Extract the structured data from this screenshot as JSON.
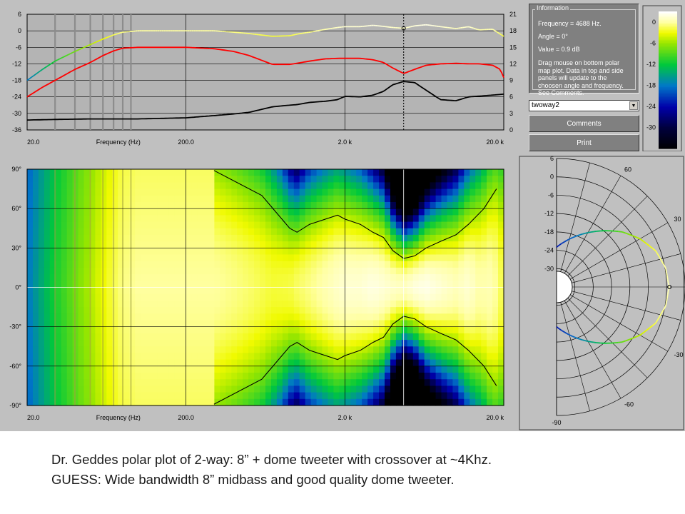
{
  "caption": {
    "line1": "Dr. Geddes polar plot of 2-way:  8” + dome tweeter with crossover at ~4Khz.",
    "line2": "GUESS:  Wide bandwidth 8” midbass and good quality dome tweeter."
  },
  "info_panel": {
    "title": "Information",
    "frequency_text": "Frequency = 4688 Hz.",
    "angle_text": "Angle = 0°",
    "value_text": "Value = 0.9 dB",
    "help_text": "Drag mouse on bottom polar map plot.  Data in top and side panels will update to the choosen angle and frequency.  See Comments."
  },
  "controls": {
    "dataset_select": "twoway2",
    "comments_button": "Comments",
    "print_button": "Print"
  },
  "colors": {
    "panel_bg": "#c0c0c0",
    "plot_bg": "#808080",
    "red_curve": "#ff0000",
    "yellow_curve": "#ffff00",
    "black_curve": "#000000"
  },
  "chart_data": [
    {
      "id": "frequency_response",
      "type": "line",
      "xlabel": "Frequency (Hz)",
      "xscale": "log",
      "xlim": [
        20,
        20000
      ],
      "x_tick_labels": [
        "20.0",
        "200.0",
        "2.0 k",
        "20.0 k"
      ],
      "ylim_left": [
        -36,
        6
      ],
      "y_left_ticks": [
        "6",
        "0",
        "-6",
        "-12",
        "-18",
        "-24",
        "-30",
        "-36"
      ],
      "ylim_right": [
        0,
        21
      ],
      "y_right_ticks": [
        "21",
        "18",
        "15",
        "12",
        "9",
        "6",
        "3",
        "0"
      ],
      "grid": true,
      "cursor_frequency": 4688,
      "series": [
        {
          "key": "on_axis",
          "color": "multi (blue-green-yellow-white by level)",
          "axis": "left",
          "x": [
            20,
            25,
            30,
            40,
            50,
            60,
            70,
            80,
            100,
            120,
            150,
            200,
            300,
            400,
            500,
            700,
            900,
            1000,
            1200,
            1500,
            1800,
            2000,
            2500,
            3000,
            3500,
            4000,
            4688,
            5500,
            6500,
            8000,
            10000,
            12000,
            14000,
            17000,
            20000
          ],
          "y": [
            -18,
            -14,
            -11,
            -7.5,
            -5,
            -3,
            -1.5,
            -0.5,
            0,
            0,
            0,
            0,
            0,
            -0.5,
            -1,
            -2,
            -1.8,
            -1.2,
            -0.5,
            0.5,
            1.2,
            1.5,
            1.5,
            2,
            1.6,
            1.2,
            0.9,
            1.8,
            2.2,
            1.5,
            0.8,
            1.5,
            0.3,
            0.6,
            -2
          ]
        },
        {
          "key": "average",
          "color": "red",
          "axis": "left",
          "x": [
            20,
            25,
            30,
            40,
            50,
            60,
            70,
            80,
            100,
            120,
            150,
            200,
            300,
            400,
            500,
            700,
            900,
            1000,
            1200,
            1500,
            1800,
            2000,
            2500,
            3000,
            3500,
            4000,
            4688,
            5500,
            6500,
            8000,
            10000,
            12000,
            14000,
            17000,
            19000,
            20000
          ],
          "y": [
            -24,
            -20.5,
            -18,
            -14,
            -11.5,
            -9,
            -7.3,
            -6.3,
            -6,
            -6,
            -6,
            -6,
            -6.5,
            -7.5,
            -9,
            -12.2,
            -12.2,
            -11.8,
            -11,
            -10.2,
            -10,
            -10,
            -10,
            -10.5,
            -11.5,
            -13.5,
            -15.5,
            -14,
            -12.5,
            -12,
            -11.8,
            -12,
            -12,
            -12.5,
            -14,
            -17
          ]
        },
        {
          "key": "directivity_index",
          "color": "black",
          "axis": "right",
          "x": [
            20,
            30,
            50,
            100,
            200,
            300,
            400,
            500,
            700,
            900,
            1000,
            1200,
            1500,
            1800,
            2000,
            2500,
            3000,
            3500,
            4000,
            4688,
            5500,
            6500,
            8000,
            10000,
            12000,
            15000,
            20000
          ],
          "y": [
            1.8,
            1.9,
            2,
            2,
            2.2,
            2.6,
            2.9,
            3.2,
            4.2,
            4.5,
            4.6,
            5,
            5.2,
            5.5,
            6.1,
            6,
            6.3,
            7,
            8.2,
            8.8,
            8.6,
            7.2,
            5.5,
            5.3,
            6,
            6.2,
            6.5
          ]
        }
      ]
    },
    {
      "id": "polar_map",
      "type": "heatmap",
      "xlabel": "Frequency (Hz)",
      "xscale": "log",
      "xlim": [
        20,
        20000
      ],
      "x_tick_labels": [
        "20.0",
        "200.0",
        "2.0 k",
        "20.0 k"
      ],
      "ylim": [
        -90,
        90
      ],
      "y_tick_labels": [
        "90°",
        "60°",
        "30°",
        "0°",
        "-30°",
        "-60°",
        "-90°"
      ],
      "contour_angle_bounds": {
        "frequency": [
          300,
          600,
          900,
          1000,
          1200,
          1800,
          2000,
          2500,
          3000,
          3500,
          4000,
          4688,
          5500,
          6500,
          8000,
          10000,
          12000,
          15000,
          18000
        ],
        "half_angle_deg": [
          90,
          70,
          45,
          42,
          48,
          55,
          52,
          48,
          42,
          38,
          28,
          22,
          24,
          30,
          35,
          40,
          48,
          60,
          75
        ]
      },
      "colorscale": {
        "label_ticks": [
          "0",
          "-6",
          "-12",
          "-18",
          "-24",
          "-30"
        ],
        "stops": [
          "#ffffff",
          "#ffff00",
          "#00d000",
          "#00b0c0",
          "#0000a0",
          "#000000"
        ]
      }
    },
    {
      "id": "polar_plot",
      "type": "line",
      "radial_ticks": [
        "6",
        "0",
        "-6",
        "-12",
        "-18",
        "-24",
        "-30"
      ],
      "angle_labels": [
        "90",
        "60",
        "30",
        "0",
        "-30",
        "-60",
        "-90"
      ],
      "angles_deg": [
        0,
        10,
        20,
        30,
        40,
        50,
        60,
        70,
        80,
        90
      ],
      "level_db": [
        0.9,
        0.2,
        -1.5,
        -4.5,
        -8,
        -12,
        -15.5,
        -18.5,
        -21,
        -23
      ]
    }
  ]
}
